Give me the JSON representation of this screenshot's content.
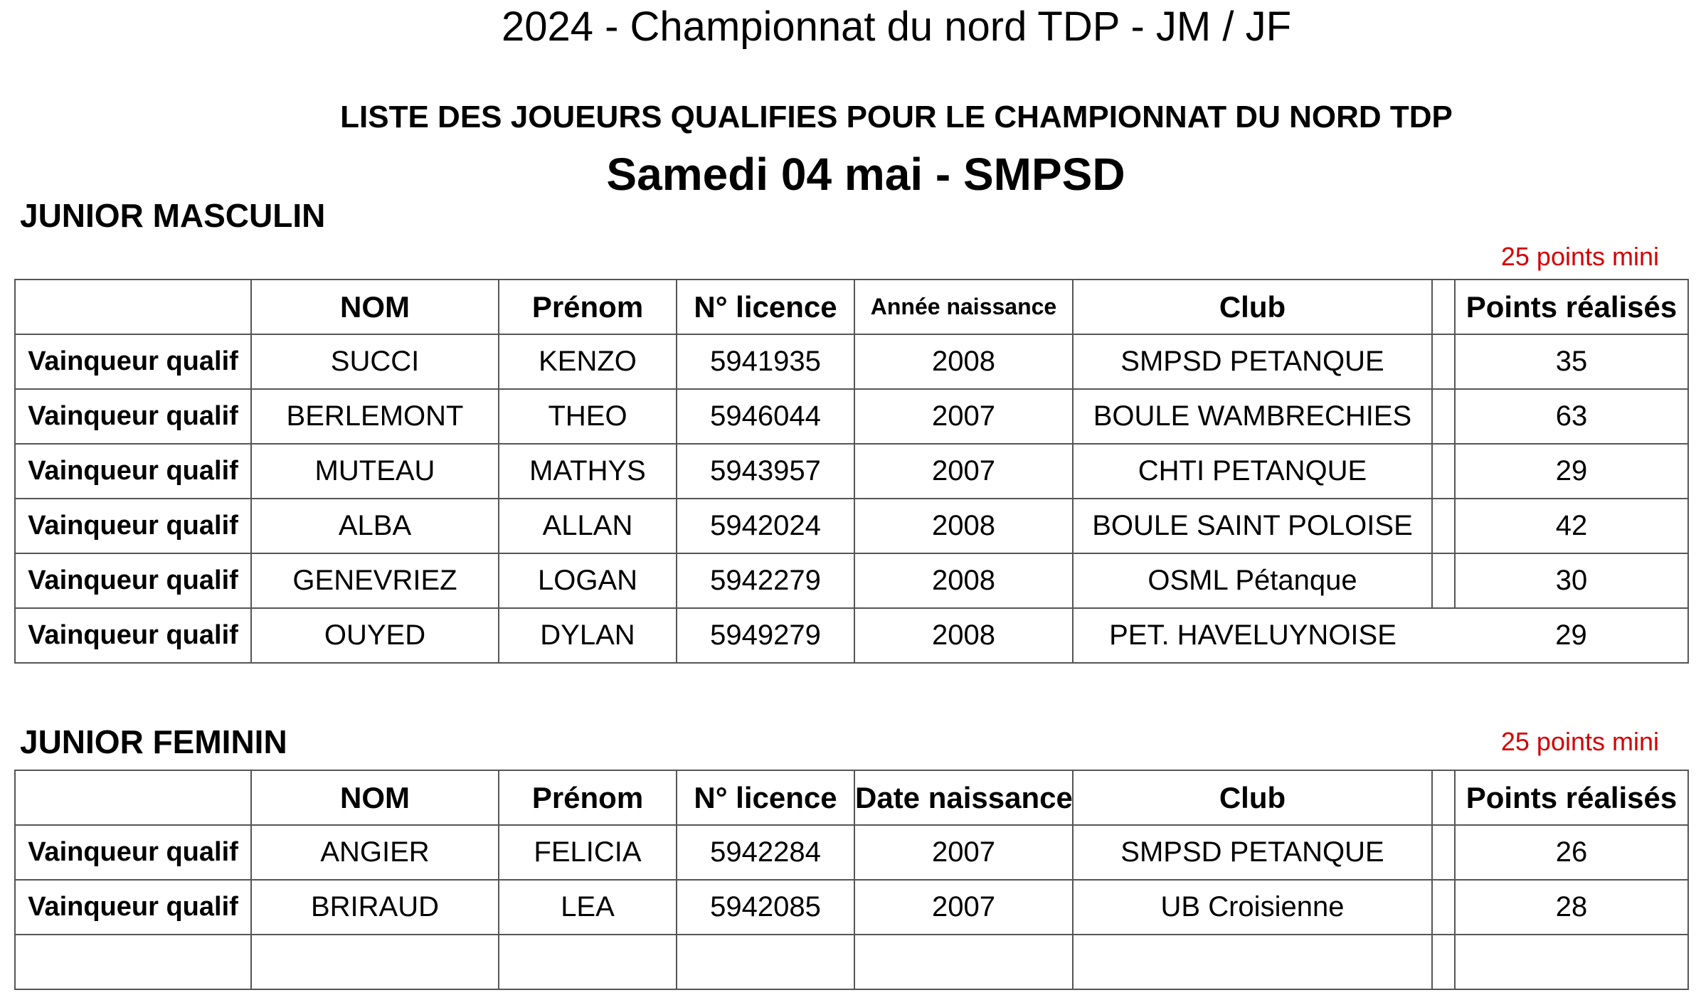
{
  "header": {
    "title": "2024 - Championnat du nord TDP - JM / JF",
    "list_title": "LISTE DES JOUEURS QUALIFIES POUR LE CHAMPIONNAT DU NORD TDP",
    "date_title": "Samedi 04 mai - SMPSD"
  },
  "junior_masculin": {
    "section_title": "JUNIOR MASCULIN",
    "min_points_note": "25 points mini",
    "columns": [
      "NOM",
      "Prénom",
      "N° licence",
      "Année naissance",
      "Club",
      "Points réalisés"
    ],
    "rows": [
      {
        "label": "Vainqueur qualif",
        "nom": "SUCCI",
        "prenom": "KENZO",
        "licence": "5941935",
        "naissance": "2008",
        "club": "SMPSD PETANQUE",
        "points": "35"
      },
      {
        "label": "Vainqueur qualif",
        "nom": "BERLEMONT",
        "prenom": "THEO",
        "licence": "5946044",
        "naissance": "2007",
        "club": "BOULE WAMBRECHIES",
        "points": "63"
      },
      {
        "label": "Vainqueur qualif",
        "nom": "MUTEAU",
        "prenom": "MATHYS",
        "licence": "5943957",
        "naissance": "2007",
        "club": "CHTI PETANQUE",
        "points": "29"
      },
      {
        "label": "Vainqueur qualif",
        "nom": "ALBA",
        "prenom": "ALLAN",
        "licence": "5942024",
        "naissance": "2008",
        "club": "BOULE SAINT POLOISE",
        "points": "42"
      },
      {
        "label": "Vainqueur qualif",
        "nom": "GENEVRIEZ",
        "prenom": "LOGAN",
        "licence": "5942279",
        "naissance": "2008",
        "club": "OSML Pétanque",
        "points": "30"
      },
      {
        "label": "Vainqueur qualif",
        "nom": "OUYED",
        "prenom": "DYLAN",
        "licence": "5949279",
        "naissance": "2008",
        "club": "PET.  HAVELUYNOISE",
        "points": "29"
      }
    ]
  },
  "junior_feminin": {
    "section_title": "JUNIOR FEMININ",
    "min_points_note": "25 points mini",
    "columns": [
      "NOM",
      "Prénom",
      "N° licence",
      "Date naissance",
      "Club",
      "Points réalisés"
    ],
    "rows": [
      {
        "label": "Vainqueur qualif",
        "nom": "ANGIER",
        "prenom": "FELICIA",
        "licence": "5942284",
        "naissance": "2007",
        "club": "SMPSD PETANQUE",
        "points": "26"
      },
      {
        "label": "Vainqueur qualif",
        "nom": "BRIRAUD",
        "prenom": "LEA",
        "licence": "5942085",
        "naissance": "2007",
        "club": "UB Croisienne",
        "points": "28"
      },
      {
        "label": "",
        "nom": "",
        "prenom": "",
        "licence": "",
        "naissance": "",
        "club": "",
        "points": ""
      }
    ]
  }
}
